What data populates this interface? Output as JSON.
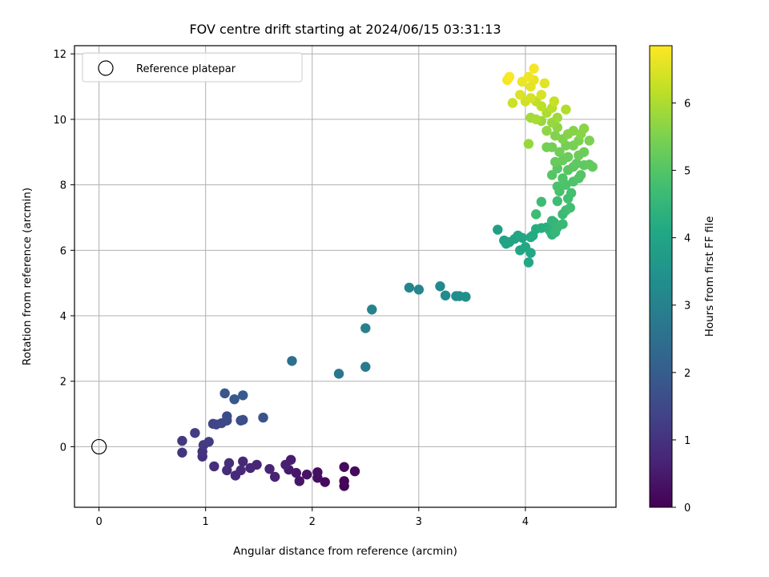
{
  "chart_data": {
    "type": "scatter",
    "title": "FOV centre drift starting at 2024/06/15 03:31:13",
    "xlabel": "Angular distance from reference (arcmin)",
    "ylabel": "Rotation from reference (arcmin)",
    "colorbar_label": "Hours from first FF file",
    "colormap": "viridis",
    "xlim": [
      -0.23,
      4.85
    ],
    "ylim": [
      -1.85,
      12.25
    ],
    "clim": [
      0,
      6.85
    ],
    "x_ticks": [
      0,
      1,
      2,
      3,
      4
    ],
    "y_ticks": [
      0,
      2,
      4,
      6,
      8,
      10,
      12
    ],
    "colorbar_ticks": [
      0,
      1,
      2,
      3,
      4,
      5,
      6
    ],
    "grid": true,
    "legend": {
      "location": "upper-left",
      "label": "Reference platepar",
      "marker": "open-circle"
    },
    "reference_point": {
      "x": 0,
      "y": 0
    },
    "points": [
      {
        "x": 2.3,
        "y": -1.2,
        "h": 0.05
      },
      {
        "x": 2.3,
        "y": -1.05,
        "h": 0.1
      },
      {
        "x": 2.3,
        "y": -0.62,
        "h": 0.15
      },
      {
        "x": 2.4,
        "y": -0.75,
        "h": 0.18
      },
      {
        "x": 2.12,
        "y": -1.08,
        "h": 0.2
      },
      {
        "x": 2.05,
        "y": -0.95,
        "h": 0.25
      },
      {
        "x": 2.05,
        "y": -0.78,
        "h": 0.3
      },
      {
        "x": 1.95,
        "y": -0.85,
        "h": 0.35
      },
      {
        "x": 1.88,
        "y": -1.05,
        "h": 0.4
      },
      {
        "x": 1.85,
        "y": -0.8,
        "h": 0.45
      },
      {
        "x": 1.78,
        "y": -0.7,
        "h": 0.5
      },
      {
        "x": 1.8,
        "y": -0.4,
        "h": 0.55
      },
      {
        "x": 1.75,
        "y": -0.55,
        "h": 0.6
      },
      {
        "x": 1.65,
        "y": -0.92,
        "h": 0.65
      },
      {
        "x": 1.6,
        "y": -0.68,
        "h": 0.7
      },
      {
        "x": 1.48,
        "y": -0.55,
        "h": 0.72
      },
      {
        "x": 1.42,
        "y": -0.65,
        "h": 0.75
      },
      {
        "x": 1.35,
        "y": -0.45,
        "h": 0.78
      },
      {
        "x": 1.33,
        "y": -0.72,
        "h": 0.8
      },
      {
        "x": 1.28,
        "y": -0.88,
        "h": 0.82
      },
      {
        "x": 1.22,
        "y": -0.5,
        "h": 0.85
      },
      {
        "x": 1.2,
        "y": -0.72,
        "h": 0.88
      },
      {
        "x": 1.08,
        "y": -0.6,
        "h": 0.9
      },
      {
        "x": 0.97,
        "y": -0.3,
        "h": 0.95
      },
      {
        "x": 0.97,
        "y": -0.15,
        "h": 1.0
      },
      {
        "x": 0.78,
        "y": -0.18,
        "h": 1.05
      },
      {
        "x": 0.78,
        "y": 0.18,
        "h": 1.1
      },
      {
        "x": 0.98,
        "y": 0.05,
        "h": 1.15
      },
      {
        "x": 1.03,
        "y": 0.15,
        "h": 1.2
      },
      {
        "x": 0.9,
        "y": 0.42,
        "h": 1.25
      },
      {
        "x": 1.07,
        "y": 0.7,
        "h": 1.35
      },
      {
        "x": 1.1,
        "y": 0.68,
        "h": 1.4
      },
      {
        "x": 1.15,
        "y": 0.72,
        "h": 1.45
      },
      {
        "x": 1.2,
        "y": 0.8,
        "h": 1.5
      },
      {
        "x": 1.2,
        "y": 0.93,
        "h": 1.55
      },
      {
        "x": 1.33,
        "y": 0.8,
        "h": 1.6
      },
      {
        "x": 1.35,
        "y": 0.82,
        "h": 1.65
      },
      {
        "x": 1.54,
        "y": 0.89,
        "h": 1.75
      },
      {
        "x": 1.18,
        "y": 1.63,
        "h": 1.85
      },
      {
        "x": 1.27,
        "y": 1.45,
        "h": 1.9
      },
      {
        "x": 1.35,
        "y": 1.57,
        "h": 1.95
      },
      {
        "x": 1.81,
        "y": 2.62,
        "h": 2.5
      },
      {
        "x": 2.25,
        "y": 2.23,
        "h": 2.7
      },
      {
        "x": 2.5,
        "y": 2.44,
        "h": 2.8
      },
      {
        "x": 2.5,
        "y": 3.62,
        "h": 3.0
      },
      {
        "x": 2.56,
        "y": 4.19,
        "h": 3.05
      },
      {
        "x": 2.91,
        "y": 4.86,
        "h": 3.1
      },
      {
        "x": 3.0,
        "y": 4.8,
        "h": 3.15
      },
      {
        "x": 3.2,
        "y": 4.9,
        "h": 3.2
      },
      {
        "x": 3.25,
        "y": 4.62,
        "h": 3.25
      },
      {
        "x": 3.35,
        "y": 4.6,
        "h": 3.3
      },
      {
        "x": 3.38,
        "y": 4.6,
        "h": 3.35
      },
      {
        "x": 3.44,
        "y": 4.58,
        "h": 3.4
      },
      {
        "x": 3.74,
        "y": 6.63,
        "h": 3.8
      },
      {
        "x": 3.8,
        "y": 6.3,
        "h": 3.9
      },
      {
        "x": 3.82,
        "y": 6.2,
        "h": 3.95
      },
      {
        "x": 3.85,
        "y": 6.25,
        "h": 4.0
      },
      {
        "x": 3.9,
        "y": 6.35,
        "h": 4.0
      },
      {
        "x": 3.93,
        "y": 6.45,
        "h": 4.02
      },
      {
        "x": 3.95,
        "y": 6.0,
        "h": 4.05
      },
      {
        "x": 3.97,
        "y": 6.38,
        "h": 4.05
      },
      {
        "x": 4.0,
        "y": 6.1,
        "h": 4.08
      },
      {
        "x": 4.03,
        "y": 5.63,
        "h": 4.1
      },
      {
        "x": 4.05,
        "y": 5.92,
        "h": 4.12
      },
      {
        "x": 4.05,
        "y": 6.4,
        "h": 4.15
      },
      {
        "x": 4.07,
        "y": 6.45,
        "h": 4.18
      },
      {
        "x": 4.1,
        "y": 6.65,
        "h": 4.2
      },
      {
        "x": 4.15,
        "y": 6.68,
        "h": 4.25
      },
      {
        "x": 4.2,
        "y": 6.7,
        "h": 4.3
      },
      {
        "x": 4.23,
        "y": 6.6,
        "h": 4.35
      },
      {
        "x": 4.25,
        "y": 6.48,
        "h": 4.4
      },
      {
        "x": 4.25,
        "y": 6.9,
        "h": 4.45
      },
      {
        "x": 4.27,
        "y": 6.85,
        "h": 4.5
      },
      {
        "x": 4.28,
        "y": 6.55,
        "h": 4.52
      },
      {
        "x": 4.3,
        "y": 6.7,
        "h": 4.55
      },
      {
        "x": 4.35,
        "y": 6.8,
        "h": 4.6
      },
      {
        "x": 4.35,
        "y": 7.1,
        "h": 4.62
      },
      {
        "x": 4.1,
        "y": 7.1,
        "h": 4.65
      },
      {
        "x": 4.15,
        "y": 7.48,
        "h": 4.68
      },
      {
        "x": 4.3,
        "y": 7.5,
        "h": 4.7
      },
      {
        "x": 4.38,
        "y": 7.22,
        "h": 4.72
      },
      {
        "x": 4.42,
        "y": 7.3,
        "h": 4.75
      },
      {
        "x": 4.4,
        "y": 7.58,
        "h": 4.78
      },
      {
        "x": 4.43,
        "y": 7.75,
        "h": 4.8
      },
      {
        "x": 4.32,
        "y": 7.8,
        "h": 4.85
      },
      {
        "x": 4.3,
        "y": 7.95,
        "h": 4.88
      },
      {
        "x": 4.38,
        "y": 8.0,
        "h": 4.9
      },
      {
        "x": 4.45,
        "y": 8.1,
        "h": 4.92
      },
      {
        "x": 4.35,
        "y": 8.2,
        "h": 4.95
      },
      {
        "x": 4.5,
        "y": 8.2,
        "h": 4.98
      },
      {
        "x": 4.52,
        "y": 8.3,
        "h": 5.0
      },
      {
        "x": 4.25,
        "y": 8.3,
        "h": 5.02
      },
      {
        "x": 4.3,
        "y": 8.5,
        "h": 5.05
      },
      {
        "x": 4.4,
        "y": 8.45,
        "h": 5.08
      },
      {
        "x": 4.45,
        "y": 8.55,
        "h": 5.1
      },
      {
        "x": 4.48,
        "y": 8.65,
        "h": 5.12
      },
      {
        "x": 4.55,
        "y": 8.6,
        "h": 5.15
      },
      {
        "x": 4.6,
        "y": 8.62,
        "h": 5.18
      },
      {
        "x": 4.63,
        "y": 8.55,
        "h": 5.2
      },
      {
        "x": 4.28,
        "y": 8.7,
        "h": 5.22
      },
      {
        "x": 4.35,
        "y": 8.75,
        "h": 5.25
      },
      {
        "x": 4.4,
        "y": 8.85,
        "h": 5.28
      },
      {
        "x": 4.5,
        "y": 8.9,
        "h": 5.3
      },
      {
        "x": 4.55,
        "y": 9.0,
        "h": 5.32
      },
      {
        "x": 4.32,
        "y": 9.0,
        "h": 5.35
      },
      {
        "x": 4.25,
        "y": 9.15,
        "h": 5.38
      },
      {
        "x": 4.2,
        "y": 9.15,
        "h": 5.4
      },
      {
        "x": 4.38,
        "y": 9.2,
        "h": 5.42
      },
      {
        "x": 4.45,
        "y": 9.2,
        "h": 5.45
      },
      {
        "x": 4.5,
        "y": 9.35,
        "h": 5.48
      },
      {
        "x": 4.6,
        "y": 9.35,
        "h": 5.5
      },
      {
        "x": 4.35,
        "y": 9.4,
        "h": 5.52
      },
      {
        "x": 4.28,
        "y": 9.5,
        "h": 5.55
      },
      {
        "x": 4.4,
        "y": 9.55,
        "h": 5.58
      },
      {
        "x": 4.45,
        "y": 9.65,
        "h": 5.6
      },
      {
        "x": 4.52,
        "y": 9.55,
        "h": 5.62
      },
      {
        "x": 4.55,
        "y": 9.72,
        "h": 5.65
      },
      {
        "x": 4.3,
        "y": 9.75,
        "h": 5.68
      },
      {
        "x": 4.2,
        "y": 9.65,
        "h": 5.7
      },
      {
        "x": 4.25,
        "y": 9.9,
        "h": 5.75
      },
      {
        "x": 4.03,
        "y": 9.25,
        "h": 5.78
      },
      {
        "x": 4.15,
        "y": 9.95,
        "h": 5.8
      },
      {
        "x": 4.3,
        "y": 10.05,
        "h": 5.85
      },
      {
        "x": 4.05,
        "y": 10.05,
        "h": 5.9
      },
      {
        "x": 4.1,
        "y": 10.0,
        "h": 5.95
      },
      {
        "x": 4.2,
        "y": 10.2,
        "h": 6.0
      },
      {
        "x": 4.38,
        "y": 10.3,
        "h": 6.05
      },
      {
        "x": 4.25,
        "y": 10.35,
        "h": 6.1
      },
      {
        "x": 4.15,
        "y": 10.4,
        "h": 6.15
      },
      {
        "x": 4.1,
        "y": 10.55,
        "h": 6.2
      },
      {
        "x": 4.27,
        "y": 10.55,
        "h": 6.25
      },
      {
        "x": 3.88,
        "y": 10.5,
        "h": 6.3
      },
      {
        "x": 4.0,
        "y": 10.55,
        "h": 6.35
      },
      {
        "x": 4.05,
        "y": 10.65,
        "h": 6.4
      },
      {
        "x": 4.15,
        "y": 10.75,
        "h": 6.45
      },
      {
        "x": 3.95,
        "y": 10.75,
        "h": 6.5
      },
      {
        "x": 4.18,
        "y": 11.1,
        "h": 6.55
      },
      {
        "x": 4.05,
        "y": 11.0,
        "h": 6.58
      },
      {
        "x": 4.08,
        "y": 11.2,
        "h": 6.62
      },
      {
        "x": 3.97,
        "y": 11.15,
        "h": 6.65
      },
      {
        "x": 4.03,
        "y": 11.3,
        "h": 6.7
      },
      {
        "x": 4.08,
        "y": 11.55,
        "h": 6.75
      },
      {
        "x": 3.83,
        "y": 11.2,
        "h": 6.78
      },
      {
        "x": 3.85,
        "y": 11.3,
        "h": 6.82
      }
    ]
  }
}
